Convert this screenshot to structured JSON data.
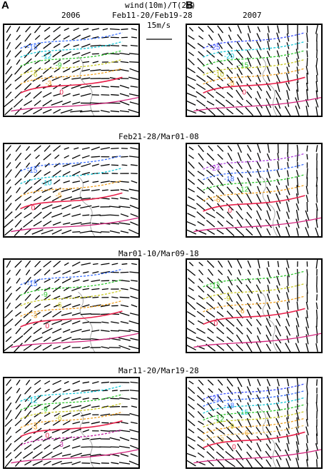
{
  "figure": {
    "letter_a": "A",
    "letter_b": "B",
    "year_left": "2006",
    "year_right": "2007",
    "header_line1": "wind(10m)/T(2m)",
    "scale_label": "15m/s",
    "colors": {
      "wind": "#000000",
      "zero_isotherm": "#e8204a",
      "terrain": "#aaaaaa"
    }
  },
  "rows": [
    {
      "period": "Feb11-20/Feb19-28",
      "left": {
        "contours": [
          {
            "label": "-15",
            "color": "#3a6fff"
          },
          {
            "label": "-12",
            "color": "#16c8d8"
          },
          {
            "label": "-9",
            "color": "#2ec82e"
          },
          {
            "label": "-6",
            "color": "#c8c820"
          },
          {
            "label": "-3",
            "color": "#f0a020"
          },
          {
            "label": "0",
            "color": "#e8204a"
          }
        ]
      },
      "right": {
        "contours": [
          {
            "label": "-25",
            "color": "#3a4fff"
          },
          {
            "label": "-20",
            "color": "#16c8d8"
          },
          {
            "label": "-15",
            "color": "#2ec82e"
          },
          {
            "label": "-10",
            "color": "#c8c820"
          },
          {
            "label": "-5",
            "color": "#f0a020"
          },
          {
            "label": "0",
            "color": "#e8204a"
          }
        ]
      }
    },
    {
      "period": "Feb21-28/Mar01-08",
      "left": {
        "contours": [
          {
            "label": "-15",
            "color": "#3a6fff"
          },
          {
            "label": "-10",
            "color": "#16c8d8"
          },
          {
            "label": "-5",
            "color": "#f0a020"
          },
          {
            "label": "0",
            "color": "#e8204a"
          }
        ]
      },
      "right": {
        "contours": [
          {
            "label": "-24",
            "color": "#b040e0"
          },
          {
            "label": "-18",
            "color": "#3a6fff"
          },
          {
            "label": "-12",
            "color": "#2ec82e"
          },
          {
            "label": "-6",
            "color": "#f0a020"
          },
          {
            "label": "0",
            "color": "#e8204a"
          }
        ]
      }
    },
    {
      "period": "Mar01-10/Mar09-18",
      "left": {
        "contours": [
          {
            "label": "-15",
            "color": "#3a6fff"
          },
          {
            "label": "-9",
            "color": "#2ec82e"
          },
          {
            "label": "-6",
            "color": "#c8c820"
          },
          {
            "label": "-3",
            "color": "#f0a020"
          },
          {
            "label": "0",
            "color": "#e8204a"
          }
        ]
      },
      "right": {
        "contours": [
          {
            "label": "-12",
            "color": "#2ec82e"
          },
          {
            "label": "-9",
            "color": "#c8c820"
          },
          {
            "label": "-6",
            "color": "#f0a020"
          },
          {
            "label": "0",
            "color": "#e8204a"
          }
        ]
      }
    },
    {
      "period": "Mar11-20/Mar19-28",
      "left": {
        "contours": [
          {
            "label": "-12",
            "color": "#16c8d8"
          },
          {
            "label": "-9",
            "color": "#2ec82e"
          },
          {
            "label": "-6",
            "color": "#c8c820"
          },
          {
            "label": "-3",
            "color": "#f0a020"
          },
          {
            "label": "0",
            "color": "#e8204a"
          },
          {
            "label": "3",
            "color": "#c020a0"
          }
        ]
      },
      "right": {
        "contours": [
          {
            "label": "-21",
            "color": "#3a4fff"
          },
          {
            "label": "-18",
            "color": "#3a6fff"
          },
          {
            "label": "-15",
            "color": "#16c8d8"
          },
          {
            "label": "-12",
            "color": "#2ec82e"
          },
          {
            "label": "-9",
            "color": "#c8c820"
          },
          {
            "label": "-6",
            "color": "#f0a020"
          },
          {
            "label": "-3",
            "color": "#f0c060"
          },
          {
            "label": "0",
            "color": "#e8204a"
          }
        ]
      }
    }
  ]
}
